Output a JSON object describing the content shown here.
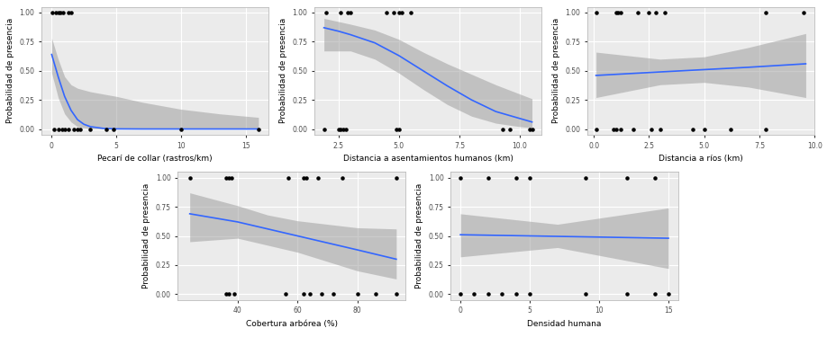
{
  "chart_data": [
    {
      "type": "line",
      "x_label": "Pecarí de collar (rastros/km)",
      "y_label": "Probabilidad de presencia",
      "xlim": [
        -0.8,
        16.8
      ],
      "xticks": [
        0,
        5,
        10,
        15
      ],
      "ylim": [
        -0.05,
        1.05
      ],
      "yticks": [
        {
          "value": 0,
          "label": "0.00"
        },
        {
          "value": 0.25,
          "label": "0.25"
        },
        {
          "value": 0.5,
          "label": "0.50"
        },
        {
          "value": 0.75,
          "label": "0.75"
        },
        {
          "value": 1,
          "label": "1.00"
        }
      ],
      "grid": true,
      "series": [
        {
          "type": "area",
          "color": "#999999",
          "x": [
            0,
            0.5,
            1,
            1.5,
            2,
            3,
            5,
            7,
            10,
            13,
            16
          ],
          "lower": [
            0.48,
            0.27,
            0.13,
            0.06,
            0.02,
            0.003,
            0,
            0,
            0,
            0,
            0
          ],
          "upper": [
            0.78,
            0.6,
            0.45,
            0.38,
            0.35,
            0.32,
            0.28,
            0.23,
            0.17,
            0.13,
            0.1
          ]
        },
        {
          "type": "line",
          "color": "#3366FF",
          "x": [
            0,
            0.5,
            1,
            1.5,
            2,
            2.5,
            3,
            4,
            5,
            7,
            10,
            16
          ],
          "values": [
            0.64,
            0.45,
            0.28,
            0.16,
            0.08,
            0.04,
            0.02,
            0.005,
            0.001,
            0,
            0,
            0
          ]
        },
        {
          "type": "scatter",
          "color": "#000000",
          "x": [
            0.05,
            0.3,
            0.5,
            0.7,
            0.9,
            1.3,
            1.5,
            0.2,
            0.5,
            0.8,
            1.0,
            1.3,
            1.7,
            2.0,
            2.2,
            3.0,
            4.2,
            4.8,
            10.0,
            16.0
          ],
          "values": [
            1,
            1,
            1,
            1,
            1,
            1,
            1,
            0,
            0,
            0,
            0,
            0,
            0,
            0,
            0,
            0,
            0,
            0,
            0,
            0
          ]
        }
      ]
    },
    {
      "type": "line",
      "x_label": "Distancia a asentamientos humanos (km)",
      "y_label": "Probabilidad de presencia",
      "xlim": [
        1.5,
        10.9
      ],
      "xticks": [
        {
          "value": 2.5,
          "label": "2.5"
        },
        {
          "value": 5,
          "label": "5.0"
        },
        {
          "value": 7.5,
          "label": "7.5"
        },
        {
          "value": 10,
          "label": "10.0"
        }
      ],
      "ylim": [
        -0.05,
        1.05
      ],
      "yticks": [
        {
          "value": 0,
          "label": "0.00"
        },
        {
          "value": 0.25,
          "label": "0.25"
        },
        {
          "value": 0.5,
          "label": "0.50"
        },
        {
          "value": 0.75,
          "label": "0.75"
        },
        {
          "value": 1,
          "label": "1.00"
        }
      ],
      "grid": true,
      "series": [
        {
          "type": "area",
          "color": "#999999",
          "x": [
            1.9,
            3,
            4,
            5,
            6,
            7,
            8,
            9,
            10,
            10.5
          ],
          "lower": [
            0.67,
            0.67,
            0.6,
            0.48,
            0.34,
            0.21,
            0.11,
            0.05,
            0.02,
            0.01
          ],
          "upper": [
            0.95,
            0.9,
            0.85,
            0.77,
            0.66,
            0.56,
            0.47,
            0.38,
            0.3,
            0.26
          ]
        },
        {
          "type": "line",
          "color": "#3366FF",
          "x": [
            1.9,
            2.5,
            3,
            4,
            5,
            6,
            7,
            8,
            9,
            10,
            10.5
          ],
          "values": [
            0.87,
            0.84,
            0.81,
            0.74,
            0.63,
            0.5,
            0.37,
            0.25,
            0.15,
            0.09,
            0.06
          ]
        },
        {
          "type": "scatter",
          "color": "#000000",
          "x": [
            2.0,
            2.6,
            2.9,
            3.0,
            4.5,
            4.8,
            5.0,
            5.1,
            5.5,
            1.9,
            2.5,
            2.6,
            2.7,
            2.8,
            4.9,
            5.0,
            9.3,
            9.6,
            10.4,
            10.5
          ],
          "values": [
            1,
            1,
            1,
            1,
            1,
            1,
            1,
            1,
            1,
            0,
            0,
            0,
            0,
            0,
            0,
            0,
            0,
            0,
            0,
            0
          ]
        }
      ]
    },
    {
      "type": "line",
      "x_label": "Distancia a ríos (km)",
      "y_label": "Probabilidad de presencia",
      "xlim": [
        -0.3,
        10.0
      ],
      "xticks": [
        {
          "value": 0,
          "label": "0.0"
        },
        {
          "value": 2.5,
          "label": "2.5"
        },
        {
          "value": 5,
          "label": "5.0"
        },
        {
          "value": 7.5,
          "label": "7.5"
        },
        {
          "value": 10,
          "label": "10.0"
        }
      ],
      "ylim": [
        -0.05,
        1.05
      ],
      "yticks": [
        {
          "value": 0,
          "label": "0.00"
        },
        {
          "value": 0.25,
          "label": "0.25"
        },
        {
          "value": 0.5,
          "label": "0.50"
        },
        {
          "value": 0.75,
          "label": "0.75"
        },
        {
          "value": 1,
          "label": "1.00"
        }
      ],
      "grid": true,
      "series": [
        {
          "type": "area",
          "color": "#999999",
          "x": [
            0.1,
            3,
            5,
            7,
            9.6
          ],
          "lower": [
            0.27,
            0.38,
            0.4,
            0.36,
            0.27
          ],
          "upper": [
            0.66,
            0.6,
            0.62,
            0.7,
            0.82
          ]
        },
        {
          "type": "line",
          "color": "#3366FF",
          "x": [
            0.1,
            3,
            5,
            7,
            9.6
          ],
          "values": [
            0.46,
            0.49,
            0.51,
            0.53,
            0.56
          ]
        },
        {
          "type": "scatter",
          "color": "#000000",
          "x": [
            0.1,
            1.0,
            1.1,
            1.2,
            2.0,
            2.5,
            2.8,
            3.2,
            7.8,
            9.5,
            0.1,
            0.9,
            1.0,
            1.2,
            1.8,
            2.6,
            3.0,
            4.5,
            5.0,
            6.2,
            7.8
          ],
          "values": [
            1,
            1,
            1,
            1,
            1,
            1,
            1,
            1,
            1,
            1,
            0,
            0,
            0,
            0,
            0,
            0,
            0,
            0,
            0,
            0,
            0
          ]
        }
      ]
    },
    {
      "type": "line",
      "x_label": "Cobertura arbórea (%)",
      "y_label": "Probabilidad de presencia",
      "xlim": [
        20,
        96
      ],
      "xticks": [
        40,
        60,
        80
      ],
      "ylim": [
        -0.05,
        1.05
      ],
      "yticks": [
        {
          "value": 0,
          "label": "0.00"
        },
        {
          "value": 0.25,
          "label": "0.25"
        },
        {
          "value": 0.5,
          "label": "0.50"
        },
        {
          "value": 0.75,
          "label": "0.75"
        },
        {
          "value": 1,
          "label": "1.00"
        }
      ],
      "grid": true,
      "series": [
        {
          "type": "area",
          "color": "#999999",
          "x": [
            24,
            40,
            50,
            60,
            80,
            93
          ],
          "lower": [
            0.45,
            0.48,
            0.42,
            0.36,
            0.2,
            0.13
          ],
          "upper": [
            0.87,
            0.76,
            0.68,
            0.63,
            0.57,
            0.56
          ]
        },
        {
          "type": "line",
          "color": "#3366FF",
          "x": [
            24,
            40,
            60,
            80,
            93
          ],
          "values": [
            0.69,
            0.62,
            0.5,
            0.38,
            0.3
          ]
        },
        {
          "type": "scatter",
          "color": "#000000",
          "x": [
            24,
            36,
            37,
            38,
            57,
            62,
            63,
            67,
            75,
            93,
            36,
            37,
            39,
            56,
            62,
            64,
            68,
            72,
            80,
            86,
            93
          ],
          "values": [
            1,
            1,
            1,
            1,
            1,
            1,
            1,
            1,
            1,
            1,
            0,
            0,
            0,
            0,
            0,
            0,
            0,
            0,
            0,
            0,
            0
          ]
        }
      ]
    },
    {
      "type": "line",
      "x_label": "Densidad humana",
      "y_label": "Probabilidad de presencia",
      "xlim": [
        -0.7,
        15.7
      ],
      "xticks": [
        0,
        5,
        10,
        15
      ],
      "ylim": [
        -0.05,
        1.05
      ],
      "yticks": [
        {
          "value": 0,
          "label": "0.00"
        },
        {
          "value": 0.25,
          "label": "0.25"
        },
        {
          "value": 0.5,
          "label": "0.50"
        },
        {
          "value": 0.75,
          "label": "0.75"
        },
        {
          "value": 1,
          "label": "1.00"
        }
      ],
      "grid": true,
      "series": [
        {
          "type": "area",
          "color": "#999999",
          "x": [
            0,
            7,
            15
          ],
          "lower": [
            0.32,
            0.4,
            0.22
          ],
          "upper": [
            0.69,
            0.6,
            0.74
          ]
        },
        {
          "type": "line",
          "color": "#3366FF",
          "x": [
            0,
            15
          ],
          "values": [
            0.51,
            0.48
          ]
        },
        {
          "type": "scatter",
          "color": "#000000",
          "x": [
            0,
            2,
            4,
            5,
            9,
            12,
            14,
            0,
            1,
            2,
            3,
            4,
            5,
            9,
            12,
            14,
            15
          ],
          "values": [
            1,
            1,
            1,
            1,
            1,
            1,
            1,
            0,
            0,
            0,
            0,
            0,
            0,
            0,
            0,
            0,
            0
          ]
        }
      ]
    }
  ]
}
